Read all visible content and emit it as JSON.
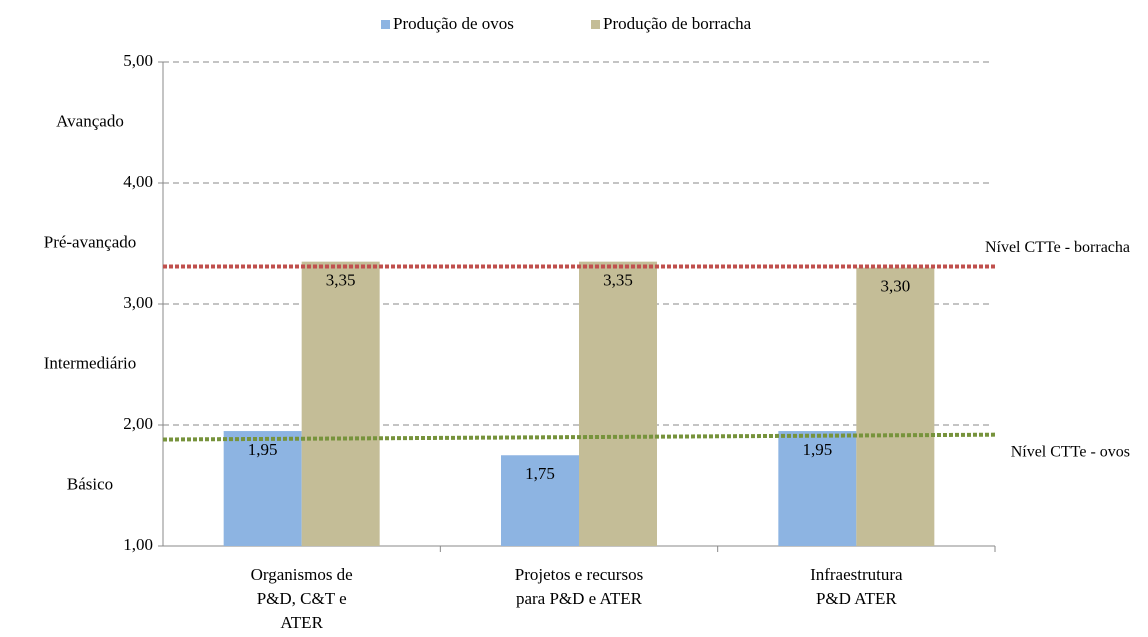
{
  "chart_data": {
    "type": "bar",
    "categories": [
      [
        "Organismos de",
        "P&D, C&T e",
        "ATER"
      ],
      [
        "Projetos  e recursos",
        "para  P&D e ATER"
      ],
      [
        "Infraestrutura",
        "P&D ATER"
      ]
    ],
    "series": [
      {
        "name": "Produção de ovos",
        "color": "#8db4e2",
        "values": [
          1.95,
          1.75,
          1.95
        ],
        "value_labels": [
          "1,95",
          "1,75",
          "1,95"
        ]
      },
      {
        "name": "Produção de borracha",
        "color": "#c4bd97",
        "values": [
          3.35,
          3.35,
          3.3
        ],
        "value_labels": [
          "3,35",
          "3,35",
          "3,30"
        ]
      }
    ],
    "ylim": [
      1,
      5
    ],
    "yticks": [
      {
        "value": 1,
        "label": "1,00"
      },
      {
        "value": 2,
        "label": "2,00"
      },
      {
        "value": 3,
        "label": "3,00"
      },
      {
        "value": 4,
        "label": "4,00"
      },
      {
        "value": 5,
        "label": "5,00"
      }
    ],
    "grid": true,
    "legend": "top",
    "levels": [
      {
        "label": "Avançado",
        "value": 4.5
      },
      {
        "label": "Pré-avançado",
        "value": 3.5
      },
      {
        "label": "Intermediário",
        "value": 2.5
      },
      {
        "label": "Básico",
        "value": 1.5
      }
    ],
    "reference_lines": [
      {
        "label": "Nível CTTe - borracha",
        "color": "#c0504d",
        "values": [
          3.31,
          3.31
        ]
      },
      {
        "label": "Nível CTTe - ovos",
        "color": "#77933c",
        "values": [
          1.88,
          1.92
        ]
      }
    ]
  }
}
